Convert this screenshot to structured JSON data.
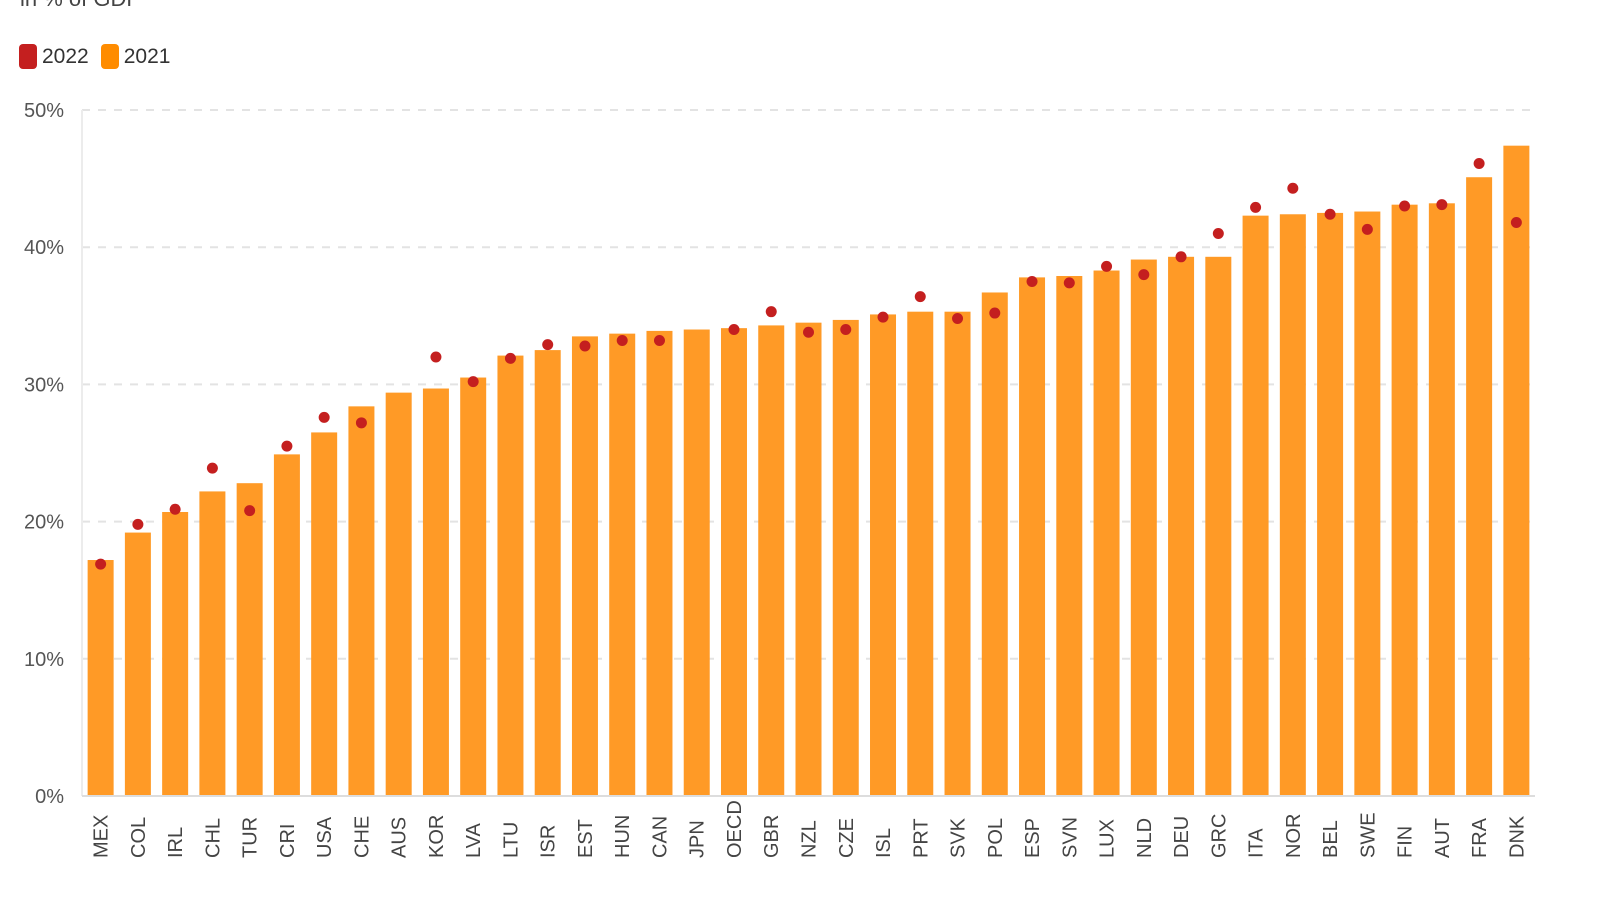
{
  "chart_data": {
    "type": "bar",
    "subtitle": "in % of GDP",
    "categories": [
      "MEX",
      "COL",
      "IRL",
      "CHL",
      "TUR",
      "CRI",
      "USA",
      "CHE",
      "AUS",
      "KOR",
      "LVA",
      "LTU",
      "ISR",
      "EST",
      "HUN",
      "CAN",
      "JPN",
      "OECD",
      "GBR",
      "NZL",
      "CZE",
      "ISL",
      "PRT",
      "SVK",
      "POL",
      "ESP",
      "SVN",
      "LUX",
      "NLD",
      "DEU",
      "GRC",
      "ITA",
      "NOR",
      "BEL",
      "SWE",
      "FIN",
      "AUT",
      "FRA",
      "DNK"
    ],
    "series": [
      {
        "name": "2021",
        "type": "bar",
        "color": "#ff9a26",
        "values": [
          17.2,
          19.2,
          20.7,
          22.2,
          22.8,
          24.9,
          26.5,
          28.4,
          29.4,
          29.7,
          30.5,
          32.1,
          32.5,
          33.5,
          33.7,
          33.9,
          34.0,
          34.1,
          34.3,
          34.5,
          34.7,
          35.1,
          35.3,
          35.3,
          36.7,
          37.8,
          37.9,
          38.3,
          39.1,
          39.3,
          39.3,
          42.3,
          42.4,
          42.5,
          42.6,
          43.1,
          43.2,
          45.1,
          47.4
        ]
      },
      {
        "name": "2022",
        "type": "dot",
        "color": "#c41f1f",
        "values": [
          16.9,
          19.8,
          20.9,
          23.9,
          20.8,
          25.5,
          27.6,
          27.2,
          null,
          32.0,
          30.2,
          31.9,
          32.9,
          32.8,
          33.2,
          33.2,
          null,
          34.0,
          35.3,
          33.8,
          34.0,
          34.9,
          36.4,
          34.8,
          35.2,
          37.5,
          37.4,
          38.6,
          38.0,
          39.3,
          41.0,
          42.9,
          44.3,
          42.4,
          41.3,
          43.0,
          43.1,
          46.1,
          41.8
        ]
      }
    ],
    "legend": [
      "2022",
      "2021"
    ],
    "legend_placement": "top-left",
    "yticks": [
      "0%",
      "10%",
      "20%",
      "30%",
      "40%",
      "50%"
    ],
    "ylim": [
      0,
      50
    ],
    "grid": true
  }
}
